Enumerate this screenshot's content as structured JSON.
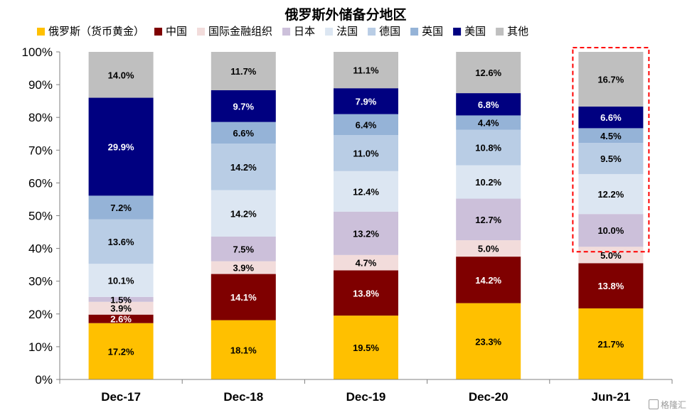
{
  "chart_data": {
    "type": "bar",
    "stacked": true,
    "title": "俄罗斯外储备分地区",
    "xlabel": "",
    "ylabel": "",
    "ylim": [
      0,
      100
    ],
    "y_ticks": [
      "0%",
      "10%",
      "20%",
      "30%",
      "40%",
      "50%",
      "60%",
      "70%",
      "80%",
      "90%",
      "100%"
    ],
    "categories": [
      "Dec-17",
      "Dec-18",
      "Dec-19",
      "Dec-20",
      "Jun-21"
    ],
    "legend_position": "top",
    "grid": false,
    "series": [
      {
        "name": "俄罗斯（货币黄金）",
        "color": "#FFC000",
        "values": [
          17.2,
          18.1,
          19.5,
          23.3,
          21.7
        ]
      },
      {
        "name": "中国",
        "color": "#7F0000",
        "values": [
          2.6,
          14.1,
          13.8,
          14.2,
          13.8
        ]
      },
      {
        "name": "国际金融组织",
        "color": "#F2DCDB",
        "values": [
          3.9,
          3.9,
          4.7,
          5.0,
          5.0
        ]
      },
      {
        "name": "日本",
        "color": "#CCC0DA",
        "values": [
          1.5,
          7.5,
          13.2,
          12.7,
          10.0
        ]
      },
      {
        "name": "法国",
        "color": "#DCE6F2",
        "values": [
          10.1,
          14.2,
          12.4,
          10.2,
          12.2
        ]
      },
      {
        "name": "德国",
        "color": "#B9CDE5",
        "values": [
          13.6,
          14.2,
          11.0,
          10.8,
          9.5
        ]
      },
      {
        "name": "英国",
        "color": "#95B3D7",
        "values": [
          7.2,
          6.6,
          6.4,
          4.4,
          4.5
        ]
      },
      {
        "name": "美国",
        "color": "#000080",
        "values": [
          29.9,
          9.7,
          7.9,
          6.8,
          6.6
        ]
      },
      {
        "name": "其他",
        "color": "#BFBFBF",
        "values": [
          14.0,
          11.7,
          11.1,
          12.6,
          16.7
        ]
      }
    ],
    "data_labels": [
      [
        "17.2%",
        "2.6%",
        "3.9%",
        "1.5%",
        "10.1%",
        "13.6%",
        "7.2%",
        "29.9%",
        "14.0%"
      ],
      [
        "18.1%",
        "14.1%",
        "3.9%",
        "7.5%",
        "14.2%",
        "14.2%",
        "6.6%",
        "9.7%",
        "11.7%"
      ],
      [
        "19.5%",
        "13.8%",
        "4.7%",
        "13.2%",
        "12.4%",
        "11.0%",
        "6.4%",
        "7.9%",
        "11.1%"
      ],
      [
        "23.3%",
        "14.2%",
        "5.0%",
        "12.7%",
        "10.2%",
        "10.8%",
        "4.4%",
        "6.8%",
        "12.6%"
      ],
      [
        "21.7%",
        "13.8%",
        "5.0%",
        "10.0%",
        "12.2%",
        "9.5%",
        "4.5%",
        "6.6%",
        "16.7%"
      ]
    ],
    "highlight": {
      "category": "Jun-21",
      "from_series": "日本",
      "to_series": "其他",
      "color": "#FF0000",
      "style": "dashed"
    }
  },
  "watermark": {
    "text": "格隆汇"
  }
}
